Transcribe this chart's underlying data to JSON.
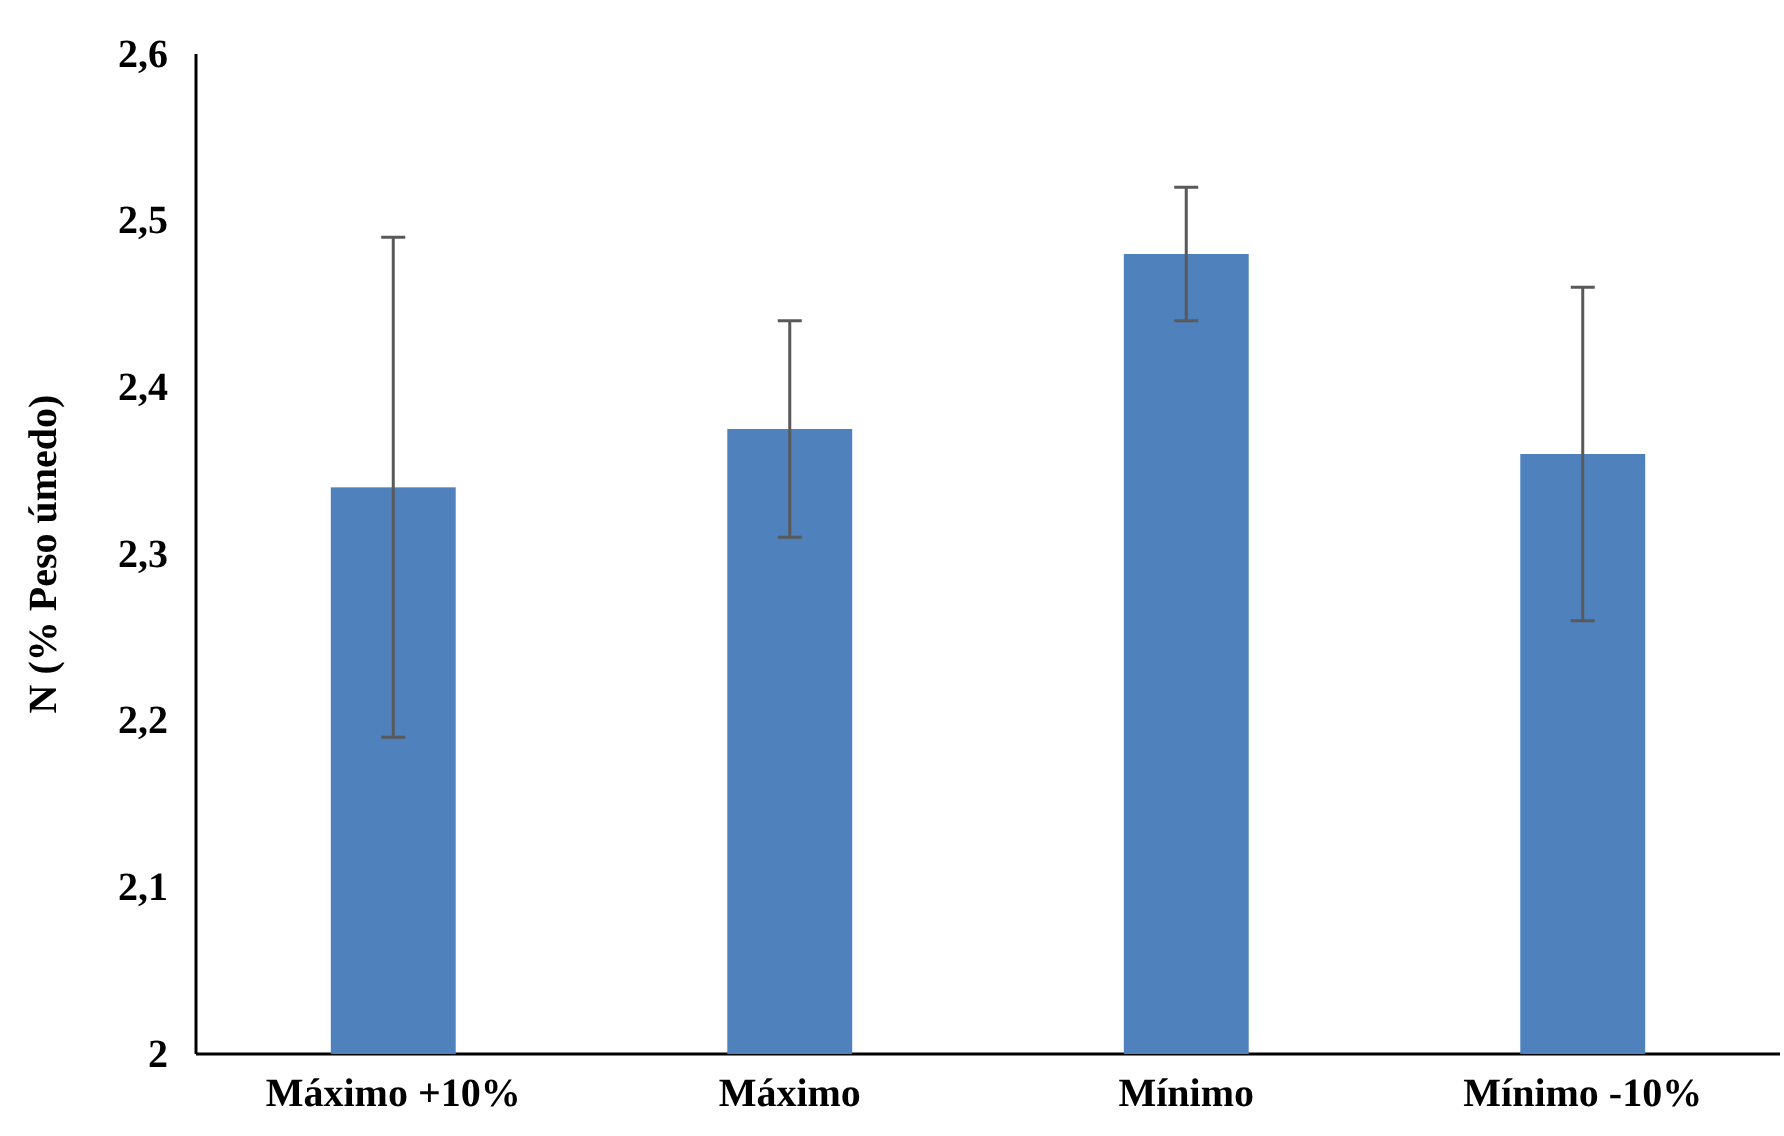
{
  "chart_data": {
    "type": "bar",
    "ylabel": "N (% Peso úmedo)",
    "categories": [
      "Máximo +10%",
      "Máximo",
      "Mínimo",
      "Mínimo -10%"
    ],
    "values": [
      2.34,
      2.375,
      2.48,
      2.36
    ],
    "color": "#4f81bd",
    "errors": [
      [
        2.19,
        2.49
      ],
      [
        2.31,
        2.44
      ],
      [
        2.44,
        2.52
      ],
      [
        2.26,
        2.46
      ]
    ],
    "ylim": [
      2,
      2.6
    ],
    "yticks": [
      2,
      {
        "value": 2.1,
        "label": "2,1"
      },
      {
        "value": 2.2,
        "label": "2,2"
      },
      {
        "value": 2.3,
        "label": "2,3"
      },
      {
        "value": 2.4,
        "label": "2,4"
      },
      {
        "value": 2.5,
        "label": "2,5"
      },
      {
        "value": 2.6,
        "label": "2,6"
      }
    ],
    "grid": false
  }
}
